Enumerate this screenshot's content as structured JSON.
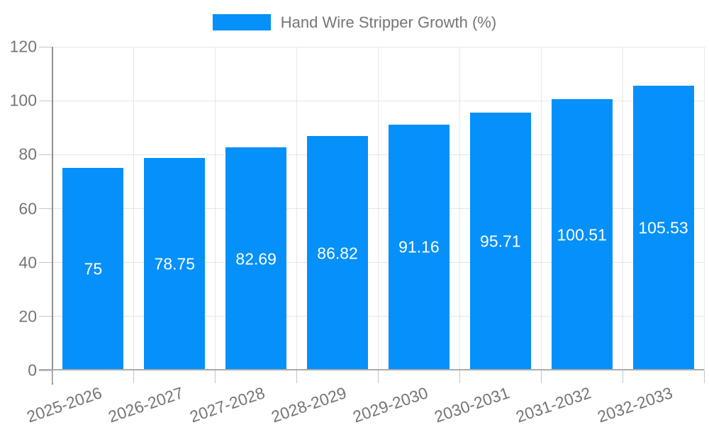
{
  "legend": {
    "label": "Hand Wire Stripper Growth (%)"
  },
  "chart_data": {
    "type": "bar",
    "title": "Hand Wire Stripper Growth (%)",
    "categories": [
      "2025-2026",
      "2026-2027",
      "2027-2028",
      "2028-2029",
      "2029-2030",
      "2030-2031",
      "2031-2032",
      "2032-2033"
    ],
    "values": [
      75,
      78.75,
      82.69,
      86.82,
      91.16,
      95.71,
      100.51,
      105.53
    ],
    "value_labels": [
      "75",
      "78.75",
      "82.69",
      "86.82",
      "91.16",
      "95.71",
      "100.51",
      "105.53"
    ],
    "xlabel": "",
    "ylabel": "",
    "ylim": [
      0,
      120
    ],
    "yticks": [
      0,
      20,
      40,
      60,
      80,
      100,
      120
    ],
    "grid": true,
    "legend_position": "top",
    "x_label_rotation_deg": -19,
    "colors": {
      "bar": "#0590fa",
      "bar_value_label": "#ffffff",
      "axis_text": "#757575",
      "grid_line": "#e6e6e6",
      "y_axis_line": "#8f8f8f",
      "x_axis_line": "#ababab",
      "tick_mark": "#c6c6c6",
      "background": "#ffffff"
    }
  }
}
